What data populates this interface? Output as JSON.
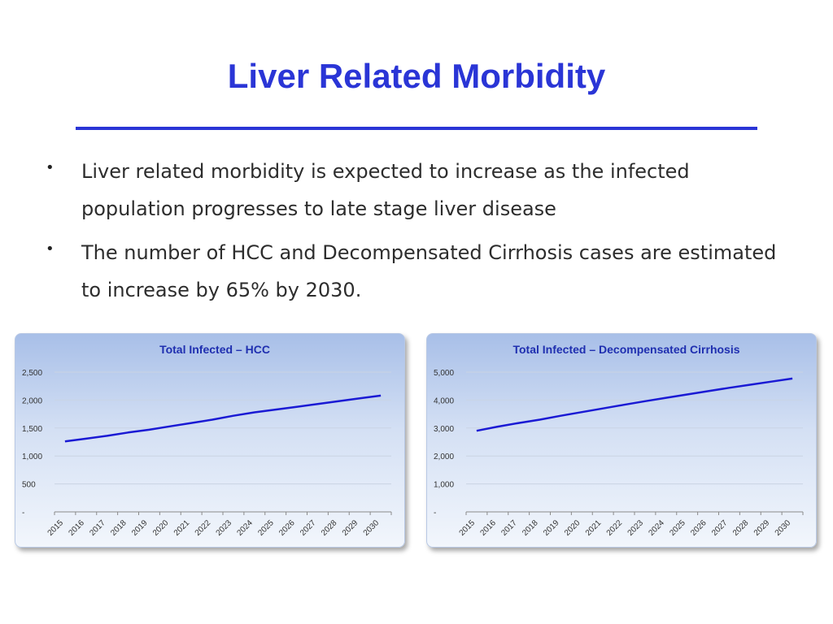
{
  "slide": {
    "title": "Liver Related Morbidity",
    "bullets": [
      "Liver related morbidity is expected to increase as the infected population progresses to late stage liver disease",
      "The number of HCC and Decompensated Cirrhosis cases are estimated to increase by 65% by 2030."
    ],
    "bullet_glyph": "•",
    "colors": {
      "title": "#2a35d6",
      "line": "#1a1ad4"
    }
  },
  "chart_data": [
    {
      "type": "line",
      "title": "Total Infected – HCC",
      "categories": [
        "2015",
        "2016",
        "2017",
        "2018",
        "2019",
        "2020",
        "2021",
        "2022",
        "2023",
        "2024",
        "2025",
        "2026",
        "2027",
        "2028",
        "2029",
        "2030"
      ],
      "series": [
        {
          "name": "HCC",
          "values": [
            1260,
            1310,
            1360,
            1420,
            1470,
            1530,
            1590,
            1650,
            1720,
            1780,
            1830,
            1880,
            1930,
            1980,
            2030,
            2080
          ]
        }
      ],
      "ylim": [
        0,
        2500
      ],
      "yticks": [
        0,
        500,
        1000,
        1500,
        2000,
        2500
      ],
      "ytick_labels": [
        "-",
        "500",
        "1,000",
        "1,500",
        "2,000",
        "2,500"
      ],
      "xlabel": "",
      "ylabel": ""
    },
    {
      "type": "line",
      "title": "Total Infected – Decompensated Cirrhosis",
      "categories": [
        "2015",
        "2016",
        "2017",
        "2018",
        "2019",
        "2020",
        "2021",
        "2022",
        "2023",
        "2024",
        "2025",
        "2026",
        "2027",
        "2028",
        "2029",
        "2030"
      ],
      "series": [
        {
          "name": "Decompensated Cirrhosis",
          "values": [
            2900,
            3050,
            3180,
            3300,
            3440,
            3570,
            3700,
            3830,
            3960,
            4080,
            4200,
            4320,
            4440,
            4550,
            4660,
            4770
          ]
        }
      ],
      "ylim": [
        0,
        5000
      ],
      "yticks": [
        0,
        1000,
        2000,
        3000,
        4000,
        5000
      ],
      "ytick_labels": [
        "-",
        "1,000",
        "2,000",
        "3,000",
        "4,000",
        "5,000"
      ],
      "xlabel": "",
      "ylabel": ""
    }
  ]
}
